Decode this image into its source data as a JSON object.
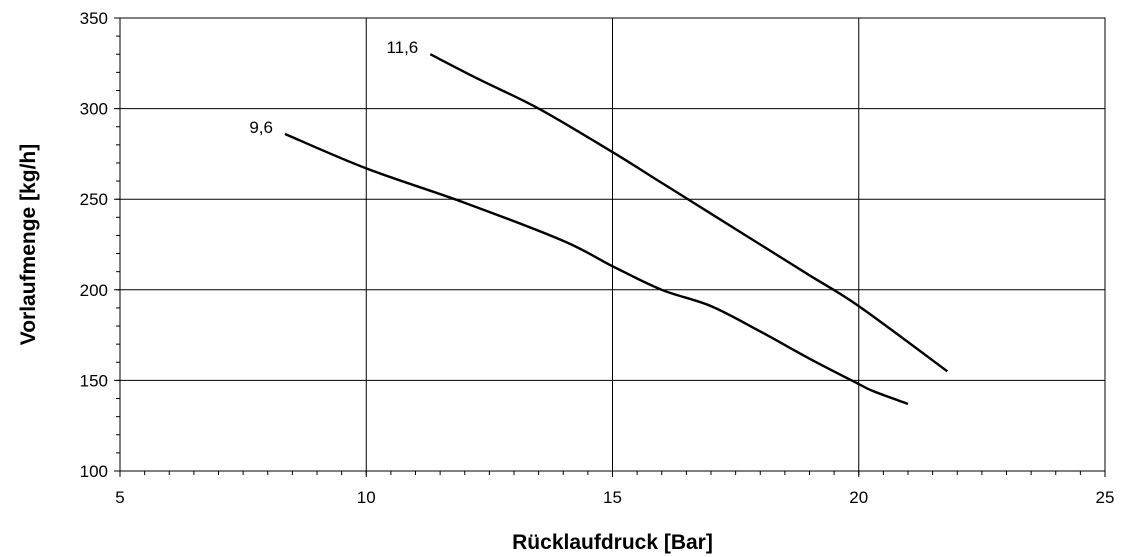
{
  "chart_data": {
    "type": "line",
    "title": "",
    "xlabel": "Rücklaufdruck [Bar]",
    "ylabel": "Vorlaufmenge [kg/h]",
    "xlim": [
      5,
      25
    ],
    "ylim": [
      100,
      350
    ],
    "x_ticks": [
      5,
      10,
      15,
      20,
      25
    ],
    "y_ticks": [
      100,
      150,
      200,
      250,
      300,
      350
    ],
    "x_tick_labels": [
      "5",
      "10",
      "15",
      "20",
      "25"
    ],
    "y_tick_labels": [
      "100",
      "150",
      "200",
      "250",
      "300",
      "350"
    ],
    "x_minor_step": 0.5,
    "y_minor_step": 10,
    "grid": true,
    "legend": "none",
    "series": [
      {
        "name": "9,6",
        "x": [
          8.35,
          10,
          12,
          14,
          15,
          16,
          17,
          18,
          19,
          20,
          20.3,
          21
        ],
        "y": [
          286,
          267,
          248,
          227,
          213,
          200,
          191,
          177,
          162,
          148,
          144,
          137
        ]
      },
      {
        "name": "11,6",
        "x": [
          11.3,
          12.3,
          13.5,
          15,
          16,
          17,
          18,
          19,
          20,
          21.8
        ],
        "y": [
          330,
          316,
          300,
          276,
          259,
          242,
          225,
          208,
          191,
          155
        ]
      }
    ]
  }
}
